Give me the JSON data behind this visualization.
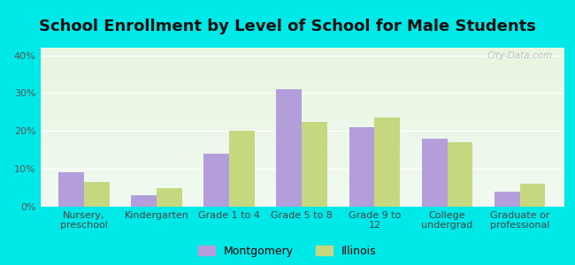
{
  "title": "School Enrollment by Level of School for Male Students",
  "categories": [
    "Nursery,\npreschool",
    "Kindergarten",
    "Grade 1 to 4",
    "Grade 5 to 8",
    "Grade 9 to\n12",
    "College\nundergrad",
    "Graduate or\nprofessional"
  ],
  "montgomery": [
    9,
    3,
    14,
    31,
    21,
    18,
    4
  ],
  "illinois": [
    6.5,
    5,
    20,
    22.5,
    23.5,
    17,
    6
  ],
  "montgomery_color": "#b39ddb",
  "illinois_color": "#c5d880",
  "background_color": "#00e8e8",
  "plot_bg_top": "#f0faf0",
  "plot_bg_bottom": "#e8f5e0",
  "ylabel_ticks": [
    "0%",
    "10%",
    "20%",
    "30%",
    "40%"
  ],
  "yticks": [
    0,
    10,
    20,
    30,
    40
  ],
  "ylim": [
    0,
    42
  ],
  "legend_montgomery": "Montgomery",
  "legend_illinois": "Illinois",
  "title_fontsize": 13,
  "tick_fontsize": 8,
  "bar_width": 0.35,
  "watermark": "City-Data.com"
}
